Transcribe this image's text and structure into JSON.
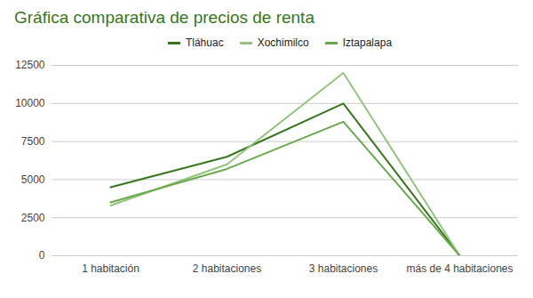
{
  "chart_data": {
    "type": "line",
    "title": "Gráfica comparativa de precios de renta",
    "categories": [
      "1 habitación",
      "2 habitaciones",
      "3 habitaciones",
      "más de 4 habitaciones"
    ],
    "series": [
      {
        "name": "Tláhuac",
        "color": "#38761d",
        "values": [
          4500,
          6500,
          10000,
          0
        ]
      },
      {
        "name": "Xochimilco",
        "color": "#93c47d",
        "values": [
          3300,
          6000,
          12000,
          0
        ]
      },
      {
        "name": "Iztapalapa",
        "color": "#6aa84f",
        "values": [
          3500,
          5700,
          8800,
          0
        ]
      }
    ],
    "ylim": [
      0,
      12500
    ],
    "yticks": [
      0,
      2500,
      5000,
      7500,
      10000,
      12500
    ],
    "grid": true,
    "legend": "top"
  }
}
